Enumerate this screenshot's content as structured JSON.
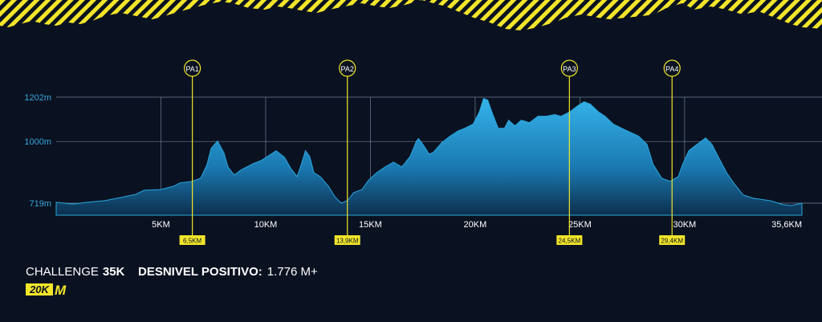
{
  "chart_data": {
    "type": "area",
    "color": "#2aa6de",
    "xlim": [
      0,
      35.6
    ],
    "ylim": [
      664,
      1202
    ],
    "xticks": [
      {
        "value": 5,
        "label": "5KM"
      },
      {
        "value": 10,
        "label": "10KM"
      },
      {
        "value": 15,
        "label": "15KM"
      },
      {
        "value": 20,
        "label": "20KM"
      },
      {
        "value": 25,
        "label": "25KM"
      },
      {
        "value": 30,
        "label": "30KM"
      },
      {
        "value": 35.6,
        "label": "35,6KM"
      }
    ],
    "yticks": [
      {
        "value": 719,
        "label": "719m"
      },
      {
        "value": 1000,
        "label": "1000m"
      },
      {
        "value": 1202,
        "label": "1202m"
      }
    ],
    "grid": true,
    "x": [
      0,
      0.8,
      1.5,
      2.3,
      3.1,
      3.8,
      4.2,
      5.0,
      5.6,
      5.9,
      6.5,
      6.9,
      7.2,
      7.4,
      7.7,
      8.0,
      8.2,
      8.5,
      8.8,
      9.4,
      9.8,
      10.2,
      10.5,
      10.9,
      11.2,
      11.5,
      11.7,
      11.9,
      12.1,
      12.3,
      12.6,
      13.0,
      13.3,
      13.6,
      13.9,
      14.2,
      14.6,
      14.9,
      15.3,
      15.7,
      16.1,
      16.5,
      16.9,
      17.2,
      17.3,
      17.5,
      17.8,
      18.0,
      18.4,
      18.8,
      19.2,
      19.5,
      19.9,
      20.2,
      20.4,
      20.6,
      20.8,
      21.1,
      21.4,
      21.6,
      21.9,
      22.2,
      22.6,
      23.0,
      23.4,
      23.8,
      24.1,
      24.5,
      24.9,
      25.2,
      25.5,
      25.9,
      26.2,
      26.6,
      27.0,
      27.4,
      27.8,
      28.2,
      28.5,
      28.9,
      29.3,
      29.7,
      29.9,
      30.2,
      30.5,
      30.7,
      31.0,
      31.3,
      31.6,
      32.0,
      32.4,
      32.8,
      33.3,
      34.1,
      34.7,
      35.1,
      35.6
    ],
    "values": [
      723,
      715,
      723,
      730,
      745,
      759,
      778,
      781,
      796,
      811,
      818,
      833,
      895,
      969,
      1002,
      950,
      884,
      847,
      869,
      899,
      914,
      939,
      958,
      928,
      877,
      840,
      895,
      958,
      932,
      858,
      840,
      796,
      748,
      719,
      730,
      767,
      781,
      822,
      858,
      884,
      906,
      884,
      932,
      1002,
      1013,
      987,
      943,
      950,
      994,
      1024,
      1049,
      1060,
      1079,
      1134,
      1196,
      1189,
      1134,
      1060,
      1060,
      1097,
      1071,
      1097,
      1086,
      1115,
      1115,
      1123,
      1115,
      1134,
      1163,
      1181,
      1170,
      1134,
      1115,
      1079,
      1060,
      1042,
      1024,
      987,
      895,
      833,
      818,
      840,
      895,
      958,
      980,
      994,
      1016,
      987,
      932,
      858,
      803,
      756,
      741,
      730,
      712,
      708,
      719
    ],
    "markers": [
      {
        "label": "PA1",
        "x": 6.5,
        "x_label": "6,5KM"
      },
      {
        "label": "PA2",
        "x": 13.9,
        "x_label": "13,9KM"
      },
      {
        "label": "PA3",
        "x": 24.5,
        "x_label": "24,5KM"
      },
      {
        "label": "PA4",
        "x": 29.4,
        "x_label": "29,4KM"
      }
    ],
    "footer": {
      "race": "CHALLENGE",
      "race_bold": "35K",
      "gain_label": "DESNIVEL POSITIVO:",
      "gain_value": "1.776 M+",
      "logo": "20K",
      "logo_mark": "M"
    }
  }
}
